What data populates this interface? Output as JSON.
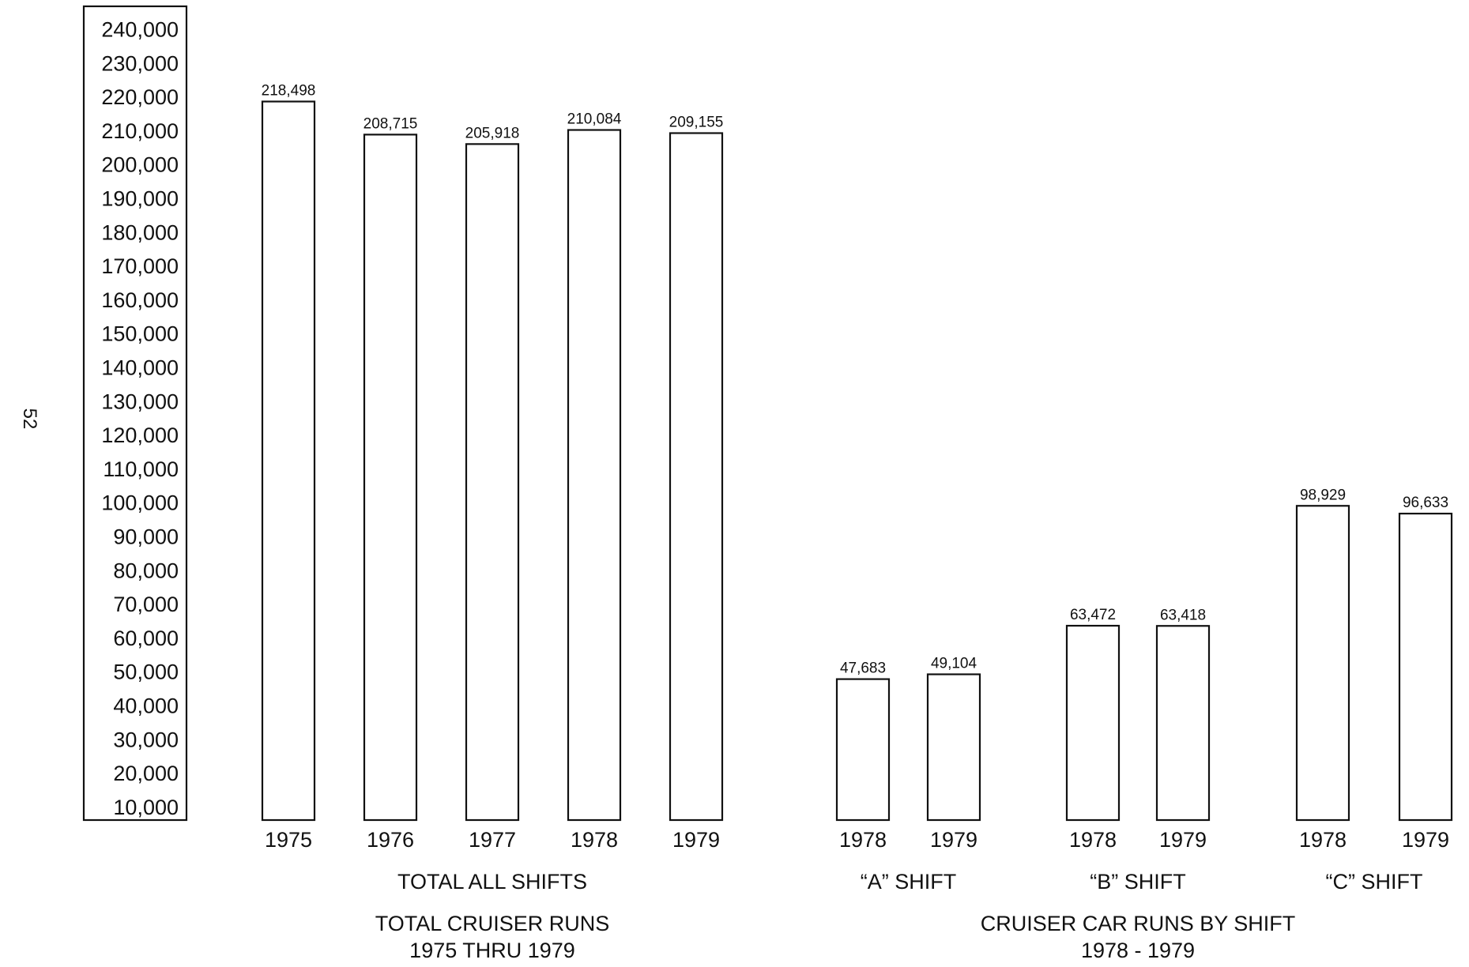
{
  "page_number": "52",
  "chart_data": [
    {
      "type": "bar",
      "title": "TOTAL CRUISER RUNS",
      "subtitle": "1975 THRU 1979",
      "group_label": "TOTAL ALL SHIFTS",
      "categories": [
        "1975",
        "1976",
        "1977",
        "1978",
        "1979"
      ],
      "values": [
        218498,
        208715,
        205918,
        210084,
        209155
      ],
      "value_labels": [
        "218,498",
        "208,715",
        "205,918",
        "210,084",
        "209,155"
      ],
      "ylim": [
        6000,
        240000
      ],
      "yticks": [
        10000,
        20000,
        30000,
        40000,
        50000,
        60000,
        70000,
        80000,
        90000,
        100000,
        110000,
        120000,
        130000,
        140000,
        150000,
        160000,
        170000,
        180000,
        190000,
        200000,
        210000,
        220000,
        230000,
        240000
      ],
      "ytick_labels": [
        "10,000",
        "20,000",
        "30,000",
        "40,000",
        "50,000",
        "60,000",
        "70,000",
        "80,000",
        "90,000",
        "100,000",
        "110,000",
        "120,000",
        "130,000",
        "140,000",
        "150,000",
        "160,000",
        "170,000",
        "180,000",
        "190,000",
        "200,000",
        "210,000",
        "220,000",
        "230,000",
        "240,000"
      ],
      "grid": false
    },
    {
      "type": "bar",
      "title": "CRUISER CAR RUNS BY SHIFT",
      "subtitle": "1978 - 1979",
      "groups": [
        {
          "label": "“A” SHIFT",
          "categories": [
            "1978",
            "1979"
          ],
          "values": [
            47683,
            49104
          ],
          "value_labels": [
            "47,683",
            "49,104"
          ]
        },
        {
          "label": "“B” SHIFT",
          "categories": [
            "1978",
            "1979"
          ],
          "values": [
            63472,
            63418
          ],
          "value_labels": [
            "63,472",
            "63,418"
          ]
        },
        {
          "label": "“C” SHIFT",
          "categories": [
            "1978",
            "1979"
          ],
          "values": [
            98929,
            96633
          ],
          "value_labels": [
            "98,929",
            "96,633"
          ]
        }
      ],
      "ylim": [
        6000,
        240000
      ],
      "grid": false
    }
  ]
}
